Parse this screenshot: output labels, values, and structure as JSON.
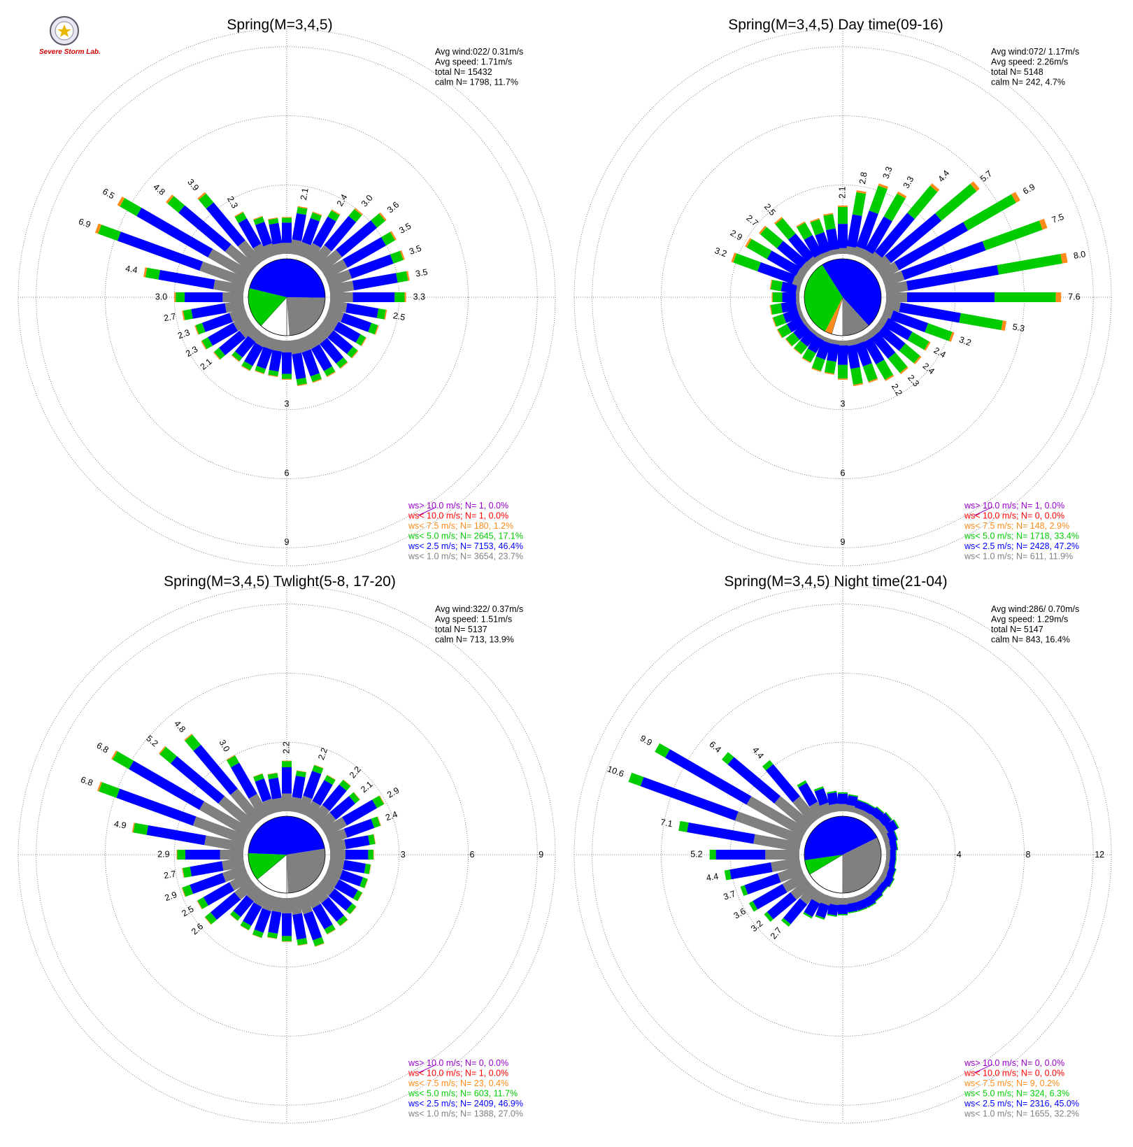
{
  "logo": {
    "text": "Severe Storm Lab."
  },
  "chart_data": [
    {
      "type": "wind-rose",
      "title": "Spring(M=3,4,5)",
      "stats": [
        "Avg wind:022/ 0.31m/s",
        "Avg speed: 1.71m/s",
        "total N=      15432",
        "calm N=   1798,  11.7%"
      ],
      "ring_labels": [
        "3",
        "6",
        "9"
      ],
      "ring_values": [
        3,
        6,
        9
      ],
      "max": 10.5,
      "pie": [
        {
          "cls": "calm",
          "frac": 0.117
        },
        {
          "cls": "ws5",
          "frac": 0.171
        },
        {
          "cls": "ws25",
          "frac": 0.464
        },
        {
          "cls": "ws1",
          "frac": 0.237
        }
      ],
      "directions": [
        {
          "dir": 0,
          "total": 1.6
        },
        {
          "dir": 10,
          "total": 2.1,
          "label": "2.1"
        },
        {
          "dir": 20,
          "total": 2.0
        },
        {
          "dir": 30,
          "total": 2.4,
          "label": "2.4"
        },
        {
          "dir": 40,
          "total": 3.0,
          "label": "3.0"
        },
        {
          "dir": 50,
          "total": 3.6,
          "label": "3.6"
        },
        {
          "dir": 60,
          "total": 3.5,
          "label": "3.5"
        },
        {
          "dir": 70,
          "total": 3.5,
          "label": "3.5"
        },
        {
          "dir": 80,
          "total": 3.5,
          "label": "3.5"
        },
        {
          "dir": 90,
          "total": 3.3,
          "label": "3.3"
        },
        {
          "dir": 100,
          "total": 2.5,
          "label": "2.5"
        },
        {
          "dir": 110,
          "total": 2.3
        },
        {
          "dir": 120,
          "total": 2.0
        },
        {
          "dir": 130,
          "total": 2.0
        },
        {
          "dir": 140,
          "total": 2.0
        },
        {
          "dir": 150,
          "total": 2.0
        },
        {
          "dir": 160,
          "total": 2.0
        },
        {
          "dir": 170,
          "total": 2.0
        },
        {
          "dir": 180,
          "total": 1.7
        },
        {
          "dir": 190,
          "total": 1.6
        },
        {
          "dir": 200,
          "total": 1.6
        },
        {
          "dir": 210,
          "total": 1.7
        },
        {
          "dir": 220,
          "total": 1.6
        },
        {
          "dir": 230,
          "total": 2.1,
          "label": "2.1"
        },
        {
          "dir": 240,
          "total": 2.3,
          "label": "2.3"
        },
        {
          "dir": 250,
          "total": 2.3,
          "label": "2.3"
        },
        {
          "dir": 260,
          "total": 2.7,
          "label": "2.7"
        },
        {
          "dir": 270,
          "total": 3.0,
          "label": "3.0"
        },
        {
          "dir": 280,
          "total": 4.4,
          "label": "4.4"
        },
        {
          "dir": 290,
          "total": 6.9,
          "label": "6.9"
        },
        {
          "dir": 300,
          "total": 6.5,
          "label": "6.5"
        },
        {
          "dir": 310,
          "total": 4.8,
          "label": "4.8"
        },
        {
          "dir": 320,
          "total": 3.9,
          "label": "3.9"
        },
        {
          "dir": 330,
          "total": 2.3,
          "label": "2.3"
        },
        {
          "dir": 340,
          "total": 1.8
        },
        {
          "dir": 350,
          "total": 1.6
        }
      ],
      "legend": [
        {
          "cls": "ws10g",
          "text": "ws> 10.0 m/s; N=     1,  0.0%"
        },
        {
          "cls": "ws10",
          "text": "ws< 10.0 m/s; N=     1,  0.0%"
        },
        {
          "cls": "ws75",
          "text": "ws<  7.5 m/s; N=   180,  1.2%"
        },
        {
          "cls": "ws5",
          "text": "ws<  5.0 m/s; N=  2645, 17.1%"
        },
        {
          "cls": "ws25",
          "text": "ws<  2.5 m/s; N=  7153, 46.4%"
        },
        {
          "cls": "ws1",
          "text": "ws<  1.0 m/s; N=  3654, 23.7%"
        }
      ]
    },
    {
      "type": "wind-rose",
      "title": "Spring(M=3,4,5) Day time(09-16)",
      "stats": [
        "Avg wind:072/ 1.17m/s",
        "Avg speed: 2.26m/s",
        "total N=       5148",
        "calm N=    242,   4.7%"
      ],
      "ring_labels": [
        "3",
        "6",
        "9"
      ],
      "ring_values": [
        3,
        6,
        9
      ],
      "max": 10.5,
      "pie": [
        {
          "cls": "calm",
          "frac": 0.047
        },
        {
          "cls": "ws75",
          "frac": 0.029
        },
        {
          "cls": "ws5",
          "frac": 0.334
        },
        {
          "cls": "ws25",
          "frac": 0.472
        },
        {
          "cls": "ws1",
          "frac": 0.119
        }
      ],
      "directions": [
        {
          "dir": 0,
          "total": 2.1,
          "label": "2.1"
        },
        {
          "dir": 10,
          "total": 2.8,
          "label": "2.8"
        },
        {
          "dir": 20,
          "total": 3.3,
          "label": "3.3"
        },
        {
          "dir": 30,
          "total": 3.3,
          "label": "3.3"
        },
        {
          "dir": 40,
          "total": 4.4,
          "label": "4.4"
        },
        {
          "dir": 50,
          "total": 5.7,
          "label": "5.7"
        },
        {
          "dir": 60,
          "total": 6.9,
          "label": "6.9"
        },
        {
          "dir": 70,
          "total": 7.5,
          "label": "7.5"
        },
        {
          "dir": 80,
          "total": 8.0,
          "label": "8.0"
        },
        {
          "dir": 90,
          "total": 7.6,
          "label": "7.6"
        },
        {
          "dir": 100,
          "total": 5.3,
          "label": "5.3"
        },
        {
          "dir": 110,
          "total": 3.2,
          "label": "3.2"
        },
        {
          "dir": 120,
          "total": 2.4,
          "label": "2.4"
        },
        {
          "dir": 130,
          "total": 2.4,
          "label": "2.4"
        },
        {
          "dir": 140,
          "total": 2.3,
          "label": "2.3"
        },
        {
          "dir": 150,
          "total": 2.2,
          "label": "2.2"
        },
        {
          "dir": 160,
          "total": 2.0
        },
        {
          "dir": 170,
          "total": 2.0
        },
        {
          "dir": 180,
          "total": 1.7
        },
        {
          "dir": 190,
          "total": 1.5
        },
        {
          "dir": 200,
          "total": 1.5
        },
        {
          "dir": 210,
          "total": 1.3
        },
        {
          "dir": 220,
          "total": 1.2
        },
        {
          "dir": 230,
          "total": 1.2
        },
        {
          "dir": 240,
          "total": 1.3
        },
        {
          "dir": 250,
          "total": 1.3
        },
        {
          "dir": 260,
          "total": 1.3
        },
        {
          "dir": 270,
          "total": 1.2
        },
        {
          "dir": 280,
          "total": 1.3
        },
        {
          "dir": 290,
          "total": 3.2,
          "label": "3.2"
        },
        {
          "dir": 300,
          "total": 2.9,
          "label": "2.9"
        },
        {
          "dir": 310,
          "total": 2.7,
          "label": "2.7"
        },
        {
          "dir": 320,
          "total": 2.5,
          "label": "2.5"
        },
        {
          "dir": 330,
          "total": 1.8
        },
        {
          "dir": 340,
          "total": 1.7
        },
        {
          "dir": 350,
          "total": 1.8
        }
      ],
      "legend": [
        {
          "cls": "ws10g",
          "text": "ws> 10.0 m/s; N=     1,  0.0%"
        },
        {
          "cls": "ws10",
          "text": "ws< 10.0 m/s; N=     0,  0.0%"
        },
        {
          "cls": "ws75",
          "text": "ws<  7.5 m/s; N=   148,  2.9%"
        },
        {
          "cls": "ws5",
          "text": "ws<  5.0 m/s; N=  1718, 33.4%"
        },
        {
          "cls": "ws25",
          "text": "ws<  2.5 m/s; N=  2428, 47.2%"
        },
        {
          "cls": "ws1",
          "text": "ws<  1.0 m/s; N=   611, 11.9%"
        }
      ]
    },
    {
      "type": "wind-rose",
      "title": "Spring(M=3,4,5) Twlight(5-8, 17-20)",
      "stats": [
        "Avg wind:322/ 0.37m/s",
        "Avg speed: 1.51m/s",
        "total N=       5137",
        "calm N=    713,  13.9%"
      ],
      "ring_labels": [
        "3",
        "6",
        "9"
      ],
      "ring_values": [
        3,
        6,
        9
      ],
      "ring_label_axis": "east",
      "max": 10.5,
      "pie": [
        {
          "cls": "calm",
          "frac": 0.139
        },
        {
          "cls": "ws5",
          "frac": 0.117
        },
        {
          "cls": "ws25",
          "frac": 0.469
        },
        {
          "cls": "ws1",
          "frac": 0.27
        }
      ],
      "directions": [
        {
          "dir": 0,
          "total": 2.2,
          "label": "2.2"
        },
        {
          "dir": 10,
          "total": 1.8
        },
        {
          "dir": 20,
          "total": 2.2,
          "label": "2.2"
        },
        {
          "dir": 30,
          "total": 2.0
        },
        {
          "dir": 40,
          "total": 2.2,
          "label": "2.2"
        },
        {
          "dir": 50,
          "total": 2.1,
          "label": "2.1"
        },
        {
          "dir": 60,
          "total": 2.9,
          "label": "2.9"
        },
        {
          "dir": 70,
          "total": 2.4,
          "label": "2.4"
        },
        {
          "dir": 80,
          "total": 2.0
        },
        {
          "dir": 90,
          "total": 1.9
        },
        {
          "dir": 100,
          "total": 1.8
        },
        {
          "dir": 110,
          "total": 1.8
        },
        {
          "dir": 120,
          "total": 1.8
        },
        {
          "dir": 130,
          "total": 1.9
        },
        {
          "dir": 140,
          "total": 2.0
        },
        {
          "dir": 150,
          "total": 2.0
        },
        {
          "dir": 160,
          "total": 2.3
        },
        {
          "dir": 170,
          "total": 2.1
        },
        {
          "dir": 180,
          "total": 1.9
        },
        {
          "dir": 190,
          "total": 1.8
        },
        {
          "dir": 200,
          "total": 1.9
        },
        {
          "dir": 210,
          "total": 1.8
        },
        {
          "dir": 220,
          "total": 1.7
        },
        {
          "dir": 230,
          "total": 2.6,
          "label": "2.6"
        },
        {
          "dir": 240,
          "total": 2.5,
          "label": "2.5"
        },
        {
          "dir": 250,
          "total": 2.9,
          "label": "2.9"
        },
        {
          "dir": 260,
          "total": 2.7,
          "label": "2.7"
        },
        {
          "dir": 270,
          "total": 2.9,
          "label": "2.9"
        },
        {
          "dir": 280,
          "total": 4.9,
          "label": "4.9"
        },
        {
          "dir": 290,
          "total": 6.8,
          "label": "6.8"
        },
        {
          "dir": 300,
          "total": 6.8,
          "label": "6.8"
        },
        {
          "dir": 310,
          "total": 5.2,
          "label": "5.2"
        },
        {
          "dir": 320,
          "total": 4.8,
          "label": "4.8"
        },
        {
          "dir": 330,
          "total": 3.0,
          "label": "3.0"
        },
        {
          "dir": 340,
          "total": 1.8
        },
        {
          "dir": 350,
          "total": 1.7
        }
      ],
      "legend": [
        {
          "cls": "ws10g",
          "text": "ws> 10.0 m/s; N=     0,  0.0%"
        },
        {
          "cls": "ws10",
          "text": "ws< 10.0 m/s; N=     1,  0.0%"
        },
        {
          "cls": "ws75",
          "text": "ws<  7.5 m/s; N=    23,  0.4%"
        },
        {
          "cls": "ws5",
          "text": "ws<  5.0 m/s; N=   603, 11.7%"
        },
        {
          "cls": "ws25",
          "text": "ws<  2.5 m/s; N=  2409, 46.9%"
        },
        {
          "cls": "ws1",
          "text": "ws<  1.0 m/s; N=  1388, 27.0%"
        }
      ]
    },
    {
      "type": "wind-rose",
      "title": "Spring(M=3,4,5) Night time(21-04)",
      "stats": [
        "Avg wind:286/ 0.70m/s",
        "Avg speed: 1.29m/s",
        "total N=       5147",
        "calm N=    843,  16.4%"
      ],
      "ring_labels": [
        "4",
        "8",
        "12"
      ],
      "ring_values": [
        4,
        8,
        12
      ],
      "ring_label_axis": "east",
      "max": 14,
      "pie": [
        {
          "cls": "calm",
          "frac": 0.164
        },
        {
          "cls": "ws5",
          "frac": 0.063
        },
        {
          "cls": "ws25",
          "frac": 0.45
        },
        {
          "cls": "ws1",
          "frac": 0.322
        }
      ],
      "directions": [
        {
          "dir": 0,
          "total": 1.1
        },
        {
          "dir": 10,
          "total": 1.0
        },
        {
          "dir": 20,
          "total": 0.8
        },
        {
          "dir": 30,
          "total": 0.8
        },
        {
          "dir": 40,
          "total": 0.9
        },
        {
          "dir": 50,
          "total": 1.0
        },
        {
          "dir": 60,
          "total": 1.1
        },
        {
          "dir": 70,
          "total": 0.8
        },
        {
          "dir": 80,
          "total": 0.7
        },
        {
          "dir": 90,
          "total": 0.6
        },
        {
          "dir": 100,
          "total": 0.6
        },
        {
          "dir": 110,
          "total": 0.7
        },
        {
          "dir": 120,
          "total": 0.8
        },
        {
          "dir": 130,
          "total": 0.7
        },
        {
          "dir": 140,
          "total": 0.8
        },
        {
          "dir": 150,
          "total": 0.9
        },
        {
          "dir": 160,
          "total": 0.9
        },
        {
          "dir": 170,
          "total": 0.9
        },
        {
          "dir": 180,
          "total": 1.0
        },
        {
          "dir": 190,
          "total": 1.1
        },
        {
          "dir": 200,
          "total": 1.4
        },
        {
          "dir": 210,
          "total": 1.6
        },
        {
          "dir": 220,
          "total": 2.7,
          "label": "2.7"
        },
        {
          "dir": 230,
          "total": 3.2,
          "label": "3.2"
        },
        {
          "dir": 240,
          "total": 3.6,
          "label": "3.6"
        },
        {
          "dir": 250,
          "total": 3.7,
          "label": "3.7"
        },
        {
          "dir": 260,
          "total": 4.4,
          "label": "4.4"
        },
        {
          "dir": 270,
          "total": 5.2,
          "label": "5.2"
        },
        {
          "dir": 280,
          "total": 7.1,
          "label": "7.1"
        },
        {
          "dir": 290,
          "total": 10.6,
          "label": "10.6"
        },
        {
          "dir": 300,
          "total": 9.9,
          "label": "9.9"
        },
        {
          "dir": 310,
          "total": 6.4,
          "label": "6.4"
        },
        {
          "dir": 320,
          "total": 4.4,
          "label": "4.4"
        },
        {
          "dir": 330,
          "total": 2.3
        },
        {
          "dir": 340,
          "total": 1.6
        },
        {
          "dir": 350,
          "total": 1.2
        }
      ],
      "legend": [
        {
          "cls": "ws10g",
          "text": "ws> 10.0 m/s; N=     0,  0.0%"
        },
        {
          "cls": "ws10",
          "text": "ws< 10.0 m/s; N=     0,  0.0%"
        },
        {
          "cls": "ws75",
          "text": "ws<  7.5 m/s; N=     9,  0.2%"
        },
        {
          "cls": "ws5",
          "text": "ws<  5.0 m/s; N=   324,  6.3%"
        },
        {
          "cls": "ws25",
          "text": "ws<  2.5 m/s; N=  2316, 45.0%"
        },
        {
          "cls": "ws1",
          "text": "ws<  1.0 m/s; N=  1655, 32.2%"
        }
      ]
    }
  ],
  "colors": {
    "ws10g": "#9900cc",
    "ws10": "#ff0000",
    "ws75": "#ff8c1a",
    "ws5": "#00cc00",
    "ws25": "#0000ff",
    "ws1": "#808080",
    "calm": "#ffffff"
  }
}
